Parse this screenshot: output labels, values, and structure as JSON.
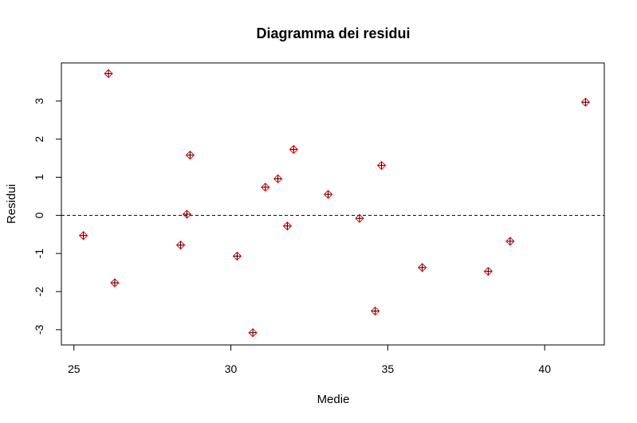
{
  "chart_data": {
    "type": "scatter",
    "title": "Diagramma  dei  residui",
    "xlabel": "Medie",
    "ylabel": "Residui",
    "xlim": [
      24.6,
      41.9
    ],
    "ylim": [
      -3.4,
      4.0
    ],
    "xticks": [
      25,
      30,
      35,
      40
    ],
    "yticks": [
      -3,
      -2,
      -1,
      0,
      1,
      2,
      3
    ],
    "reference_line": {
      "y": 0,
      "style": "dashed"
    },
    "grid": false,
    "marker_color": "#ff0000",
    "marker_cross_color": "#000000",
    "points": [
      {
        "x": 25.3,
        "y": -0.53
      },
      {
        "x": 26.1,
        "y": 3.72
      },
      {
        "x": 26.3,
        "y": -1.77
      },
      {
        "x": 28.4,
        "y": -0.78
      },
      {
        "x": 28.6,
        "y": 0.03
      },
      {
        "x": 28.7,
        "y": 1.58
      },
      {
        "x": 30.2,
        "y": -1.07
      },
      {
        "x": 30.7,
        "y": -3.08
      },
      {
        "x": 31.1,
        "y": 0.74
      },
      {
        "x": 31.5,
        "y": 0.96
      },
      {
        "x": 31.8,
        "y": -0.28
      },
      {
        "x": 32.0,
        "y": 1.73
      },
      {
        "x": 33.1,
        "y": 0.55
      },
      {
        "x": 34.1,
        "y": -0.08
      },
      {
        "x": 34.6,
        "y": -2.51
      },
      {
        "x": 34.8,
        "y": 1.31
      },
      {
        "x": 36.1,
        "y": -1.37
      },
      {
        "x": 38.2,
        "y": -1.47
      },
      {
        "x": 38.9,
        "y": -0.68
      },
      {
        "x": 41.3,
        "y": 2.97
      }
    ]
  }
}
